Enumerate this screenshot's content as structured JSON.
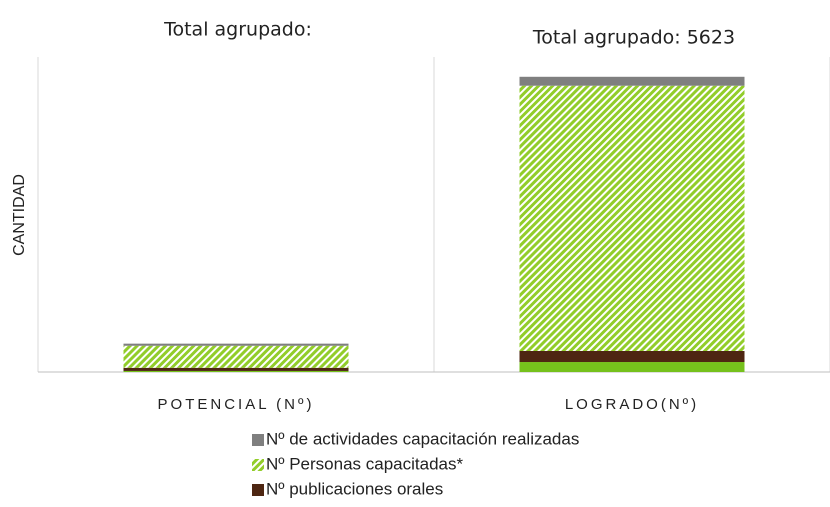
{
  "chart_data": {
    "type": "stacked_bar",
    "ylabel": "CANTIDAD",
    "annotations": [
      "Total agrupado:",
      "Total agrupado: 5623"
    ],
    "categories": [
      "POTENCIAL (Nº)",
      "LOGRADO(Nº)"
    ],
    "series": [
      {
        "color": "#76c11c",
        "values": [
          20,
          190
        ]
      },
      {
        "name": "Nº publicaciones orales",
        "color": "#4e2612",
        "values": [
          60,
          210
        ]
      },
      {
        "name": "Nº Personas capacitadas*",
        "color": "#92cd2a",
        "pattern": "hatch",
        "values": [
          420,
          5053
        ]
      },
      {
        "name": "Nº de actividades capacitación realizadas",
        "color": "#7f7f7f",
        "values": [
          40,
          170
        ]
      }
    ],
    "ylim": [
      0,
      6000
    ]
  }
}
